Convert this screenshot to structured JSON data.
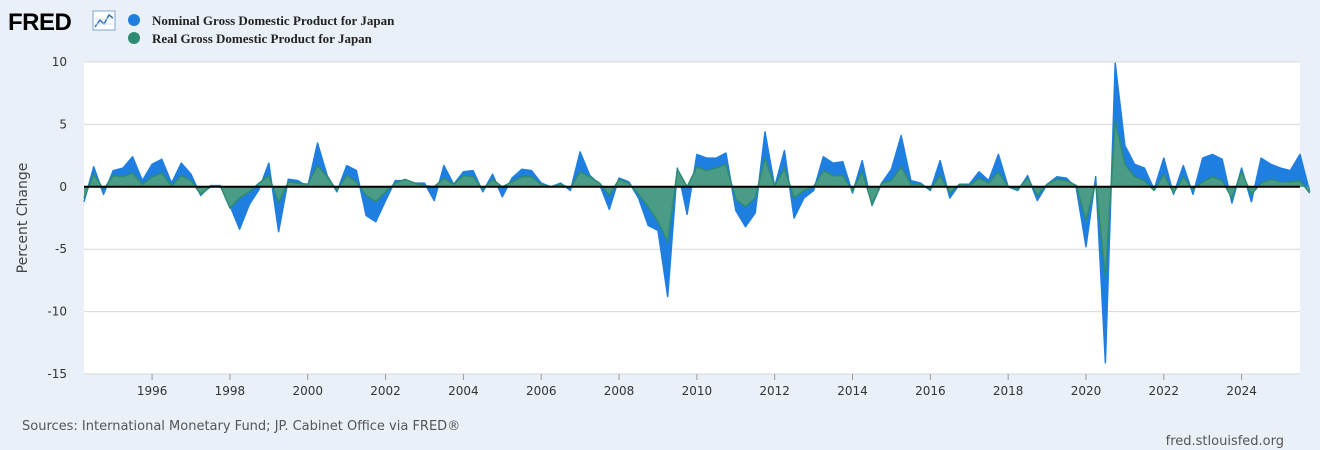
{
  "branding": {
    "logo": "FRED",
    "credit": "fred.stlouisfed.org",
    "source": "Sources: International Monetary Fund; JP. Cabinet Office via FRED®"
  },
  "colors": {
    "nominal": "#1f7fe0",
    "real": "#2e8b73",
    "real_fill": "#4a9c86",
    "zero_line": "#000000",
    "grid": "#d8d8d8",
    "plot_bg": "#ffffff",
    "page_bg": "#e9f0f8"
  },
  "chart_data": {
    "type": "area",
    "title": "",
    "xlabel": "",
    "ylabel": "Percent Change",
    "ylim": [
      -15,
      10
    ],
    "y_ticks": [
      10,
      5,
      0,
      -5,
      -10,
      -15
    ],
    "y_tick_labels": [
      "10",
      "5",
      "0",
      "-5",
      "-10",
      "-15"
    ],
    "xlim": [
      "1994-04",
      "2025-07"
    ],
    "x_tick_labels": [
      "1996",
      "1998",
      "2000",
      "2002",
      "2004",
      "2006",
      "2008",
      "2010",
      "2012",
      "2014",
      "2016",
      "2018",
      "2020",
      "2022",
      "2024"
    ],
    "grid": true,
    "legend_position": "top-left",
    "series": [
      {
        "name": "Nominal Gross Domestic Product for Japan",
        "start": "1994-04",
        "frequency": "quarterly",
        "values": [
          -1.2,
          1.6,
          -0.6,
          1.3,
          1.5,
          2.4,
          0.5,
          1.8,
          2.2,
          0.3,
          1.9,
          1.0,
          -0.7,
          0.1,
          0.1,
          -1.5,
          -3.4,
          -1.4,
          -0.2,
          1.9,
          -3.6,
          0.6,
          0.5,
          0.0,
          3.5,
          0.9,
          -0.4,
          1.7,
          1.3,
          -2.3,
          -2.8,
          -1.1,
          0.5,
          0.5,
          0.3,
          0.3,
          -1.1,
          1.7,
          0.2,
          1.2,
          1.3,
          -0.4,
          1.0,
          -0.8,
          0.7,
          1.4,
          1.3,
          0.3,
          0.0,
          0.3,
          -0.3,
          2.8,
          0.9,
          0.2,
          -1.8,
          0.7,
          0.4,
          -0.9,
          -3.1,
          -3.5,
          -8.8,
          1.5,
          -2.2,
          2.6,
          2.3,
          2.3,
          2.7,
          -1.9,
          -3.2,
          -2.1,
          4.4,
          0.0,
          2.9,
          -2.5,
          -0.9,
          -0.3,
          2.4,
          1.9,
          2.0,
          -0.5,
          2.1,
          -1.5,
          0.3,
          1.4,
          4.1,
          0.5,
          0.3,
          -0.3,
          2.1,
          -0.9,
          0.2,
          0.2,
          1.2,
          0.5,
          2.6,
          0.0,
          -0.3,
          0.9,
          -1.1,
          0.2,
          0.8,
          0.7,
          -0.1,
          -4.8,
          0.8,
          -14.1,
          9.9,
          3.3,
          1.8,
          1.5,
          -0.2,
          2.3,
          -0.6,
          1.7,
          -0.6,
          2.3,
          2.6,
          2.2,
          -1.3,
          1.5,
          -1.2,
          2.3,
          1.8,
          1.5,
          1.3,
          2.6,
          -0.4
        ]
      },
      {
        "name": "Real Gross Domestic Product for Japan",
        "start": "1994-04",
        "frequency": "quarterly",
        "values": [
          -0.9,
          1.0,
          -0.2,
          0.9,
          0.8,
          1.1,
          0.2,
          0.8,
          1.1,
          0.1,
          0.9,
          0.5,
          -0.6,
          0.0,
          0.1,
          -1.7,
          -0.9,
          -0.4,
          0.3,
          0.9,
          -1.3,
          0.4,
          0.3,
          0.2,
          1.7,
          0.8,
          -0.3,
          0.9,
          0.4,
          -0.7,
          -1.2,
          -0.4,
          0.3,
          0.6,
          0.3,
          0.1,
          0.0,
          0.7,
          0.2,
          0.9,
          0.8,
          -0.2,
          0.6,
          0.0,
          0.4,
          0.8,
          0.8,
          0.2,
          0.0,
          0.2,
          -0.1,
          1.2,
          0.8,
          0.3,
          -0.7,
          0.6,
          0.3,
          -0.6,
          -1.6,
          -2.8,
          -4.4,
          1.4,
          0.0,
          1.6,
          1.3,
          1.5,
          1.8,
          -1.0,
          -1.6,
          -0.9,
          2.3,
          0.1,
          1.5,
          -0.9,
          -0.3,
          0.0,
          1.3,
          0.9,
          0.9,
          -0.3,
          1.2,
          -1.4,
          0.3,
          0.5,
          1.6,
          0.2,
          0.2,
          -0.2,
          0.9,
          -0.5,
          0.2,
          0.1,
          0.7,
          0.3,
          1.2,
          0.0,
          -0.2,
          0.7,
          -0.7,
          0.2,
          0.6,
          0.5,
          0.1,
          -2.7,
          0.3,
          -7.3,
          5.3,
          1.8,
          0.8,
          0.5,
          -0.3,
          1.0,
          -0.5,
          0.8,
          -0.2,
          0.4,
          0.8,
          0.5,
          -0.9,
          1.2,
          -0.6,
          0.3,
          0.6,
          0.4,
          0.4,
          0.5,
          -0.5
        ]
      }
    ]
  }
}
